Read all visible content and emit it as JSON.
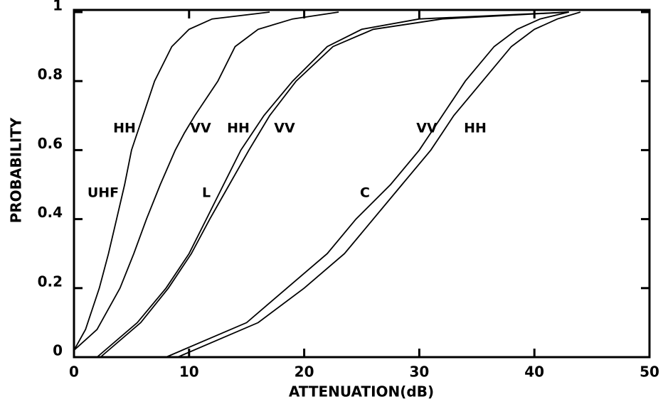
{
  "chart_data": {
    "type": "line",
    "xlabel": "ATTENUATION(dB)",
    "ylabel": "PROBABILITY",
    "xlim": [
      0,
      50
    ],
    "ylim": [
      0,
      1
    ],
    "xticks": [
      0,
      10,
      20,
      30,
      40,
      50
    ],
    "yticks": [
      0,
      0.2,
      0.4,
      0.6,
      0.8,
      1
    ],
    "color": "#000000",
    "series": [
      {
        "x": [
          0,
          1,
          2.2,
          3,
          3.7,
          4.4,
          5,
          5.5,
          6,
          7,
          8.5,
          10,
          12,
          17
        ],
        "values": [
          0.02,
          0.08,
          0.2,
          0.3,
          0.4,
          0.5,
          0.6,
          0.65,
          0.7,
          0.8,
          0.9,
          0.95,
          0.98,
          1
        ]
      },
      {
        "x": [
          0,
          2,
          4,
          5.2,
          6.3,
          7.5,
          8.8,
          9.6,
          10.5,
          12.5,
          14,
          16,
          19,
          23
        ],
        "values": [
          0.02,
          0.08,
          0.2,
          0.3,
          0.4,
          0.5,
          0.6,
          0.65,
          0.7,
          0.8,
          0.9,
          0.95,
          0.98,
          1
        ]
      },
      {
        "x": [
          2,
          5.5,
          8,
          10,
          11.5,
          13,
          14.5,
          15.5,
          16.5,
          19,
          22,
          25,
          30,
          43
        ],
        "values": [
          0,
          0.1,
          0.2,
          0.3,
          0.4,
          0.5,
          0.6,
          0.65,
          0.7,
          0.8,
          0.9,
          0.95,
          0.98,
          1
        ]
      },
      {
        "x": [
          2.3,
          5.8,
          8.2,
          10.2,
          11.8,
          13.5,
          15.2,
          16.1,
          17,
          19.3,
          22.5,
          26,
          32,
          43
        ],
        "values": [
          0,
          0.1,
          0.2,
          0.3,
          0.4,
          0.5,
          0.6,
          0.65,
          0.7,
          0.8,
          0.9,
          0.95,
          0.98,
          1
        ]
      },
      {
        "x": [
          8,
          15,
          18.5,
          22,
          24.5,
          27.5,
          30,
          31,
          32,
          34,
          36.5,
          38.5,
          40.5,
          43
        ],
        "values": [
          0,
          0.1,
          0.2,
          0.3,
          0.4,
          0.5,
          0.6,
          0.65,
          0.7,
          0.8,
          0.9,
          0.95,
          0.98,
          1
        ]
      },
      {
        "x": [
          9,
          16,
          20,
          23.5,
          26,
          28.5,
          31,
          32,
          33,
          35.5,
          38,
          40,
          42,
          44
        ],
        "values": [
          0,
          0.1,
          0.2,
          0.3,
          0.4,
          0.5,
          0.6,
          0.65,
          0.7,
          0.8,
          0.9,
          0.95,
          0.98,
          1
        ]
      }
    ],
    "annotations": [
      "HH",
      "UHF",
      "VV",
      "HH",
      "VV",
      "L",
      "VV",
      "HH",
      "C"
    ]
  }
}
